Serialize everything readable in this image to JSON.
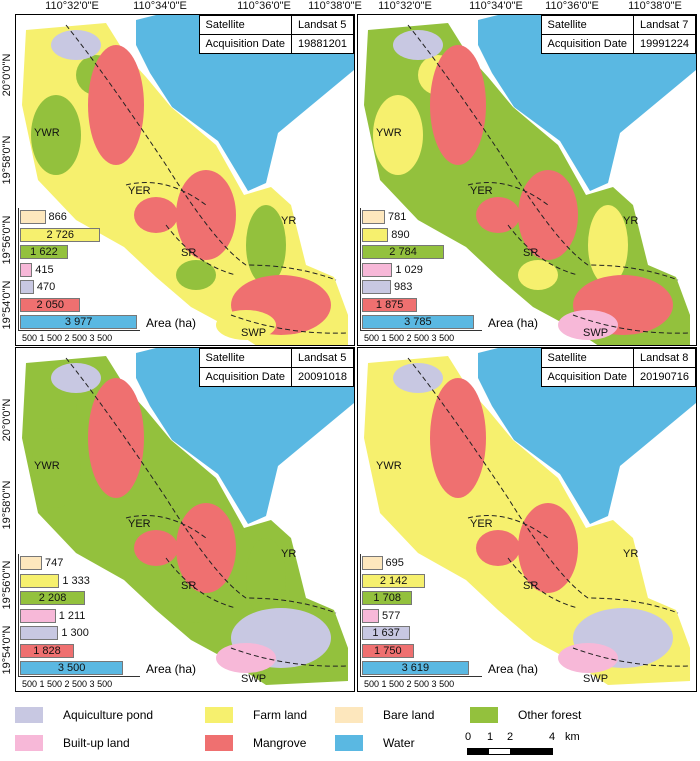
{
  "top_axis_labels": [
    "110°32'0\"E",
    "110°34'0\"E",
    "110°36'0\"E",
    "110°38'0\"E",
    "110°32'0\"E",
    "110°34'0\"E",
    "110°36'0\"E",
    "110°38'0\"E"
  ],
  "left_axis_labels": [
    "20°0'0\"N",
    "19°58'0\"N",
    "19°56'0\"N",
    "19°54'0\"N"
  ],
  "regions": [
    "YWR",
    "YER",
    "SR",
    "YR",
    "SWP"
  ],
  "info_labels": {
    "satellite": "Satellite",
    "date": "Acquisition Date"
  },
  "bar_axis": {
    "ticks": "500  1 500  2 500  3 500",
    "unit": "Area (ha)"
  },
  "classes": [
    {
      "name": "Bare land",
      "color": "#fde7bd"
    },
    {
      "name": "Farm land",
      "color": "#f6f06e"
    },
    {
      "name": "Other forest",
      "color": "#93c13d"
    },
    {
      "name": "Built-up land",
      "color": "#f7b8d8"
    },
    {
      "name": "Aquiculture pond",
      "color": "#c8c8e2"
    },
    {
      "name": "Mangrove",
      "color": "#ef7070"
    },
    {
      "name": "Water",
      "color": "#5ab8e2"
    }
  ],
  "panels": [
    {
      "satellite": "Landsat 5",
      "date": "19881201",
      "areas": [
        866,
        2726,
        1622,
        415,
        470,
        2050,
        3977
      ],
      "labels": [
        "866",
        "2 726",
        "1 622",
        "415",
        "470",
        "2 050",
        "3 977"
      ]
    },
    {
      "satellite": "Landsat 7",
      "date": "19991224",
      "areas": [
        781,
        890,
        2784,
        1029,
        983,
        1875,
        3785
      ],
      "labels": [
        "781",
        "890",
        "2 784",
        "1 029",
        "983",
        "1 875",
        "3 785"
      ]
    },
    {
      "satellite": "Landsat 5",
      "date": "20091018",
      "areas": [
        747,
        1333,
        2208,
        1211,
        1300,
        1828,
        3500
      ],
      "labels": [
        "747",
        "1 333",
        "2 208",
        "1 211",
        "1 300",
        "1 828",
        "3 500"
      ]
    },
    {
      "satellite": "Landsat 8",
      "date": "20190716",
      "areas": [
        695,
        2142,
        1708,
        577,
        1637,
        1750,
        3619
      ],
      "labels": [
        "695",
        "2 142",
        "1 708",
        "577",
        "1 637",
        "1 750",
        "3 619"
      ]
    }
  ],
  "legend": [
    {
      "name": "Aquiculture pond",
      "color": "#c8c8e2"
    },
    {
      "name": "Farm land",
      "color": "#f6f06e"
    },
    {
      "name": "Bare land",
      "color": "#fde7bd"
    },
    {
      "name": "Other forest",
      "color": "#93c13d"
    },
    {
      "name": "Built-up land",
      "color": "#f7b8d8"
    },
    {
      "name": "Mangrove",
      "color": "#ef7070"
    },
    {
      "name": "Water",
      "color": "#5ab8e2"
    }
  ],
  "scale_bar": {
    "ticks": [
      "0",
      "1",
      "2",
      "4"
    ],
    "unit": "km"
  }
}
